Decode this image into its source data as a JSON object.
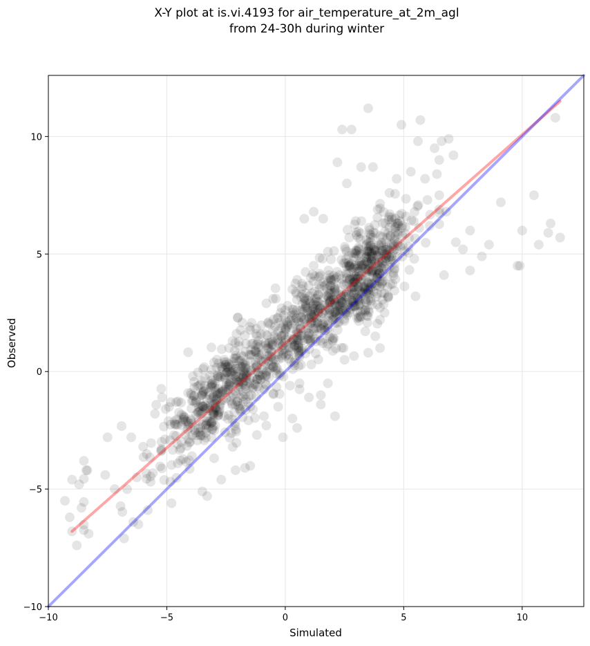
{
  "chart_data": {
    "type": "scatter",
    "title": "X-Y plot at is.vi.4193 for air_temperature_at_2m_agl",
    "subtitle": "from 24-30h during winter",
    "xlabel": "Simulated",
    "ylabel": "Observed",
    "xlim": [
      -10,
      12.6
    ],
    "ylim": [
      -10,
      12.6
    ],
    "x_ticks": [
      -10,
      -5,
      0,
      5,
      10
    ],
    "y_ticks": [
      -10,
      -5,
      0,
      5,
      10
    ],
    "x_tick_labels": [
      "−10",
      "−5",
      "0",
      "5",
      "10"
    ],
    "y_tick_labels": [
      "−10",
      "−5",
      "0",
      "5",
      "10"
    ],
    "grid": true,
    "legend": "none",
    "point_color": "#000000",
    "point_opacity": 0.1,
    "lines": [
      {
        "kind": "fit",
        "color": "#ff0000",
        "opacity": 0.35,
        "points": [
          [
            -9.0,
            -6.8
          ],
          [
            11.6,
            11.5
          ]
        ]
      },
      {
        "kind": "identity",
        "color": "#0000ff",
        "opacity": 0.35,
        "points": [
          [
            -10,
            -10
          ],
          [
            12.6,
            12.6
          ]
        ]
      }
    ],
    "outlier_points": [
      [
        -9.3,
        -5.5
      ],
      [
        -9.1,
        -6.2
      ],
      [
        -9.0,
        -6.8
      ],
      [
        -8.8,
        -7.4
      ],
      [
        -9.0,
        -4.6
      ],
      [
        -8.7,
        -4.8
      ],
      [
        -8.5,
        -3.8
      ],
      [
        -8.4,
        -4.2
      ],
      [
        -8.6,
        -5.8
      ],
      [
        -8.3,
        -6.9
      ],
      [
        -7.5,
        -2.8
      ],
      [
        -7.6,
        -4.4
      ],
      [
        -7.2,
        -5.0
      ],
      [
        -6.8,
        -7.1
      ],
      [
        -6.2,
        -6.5
      ],
      [
        -5.8,
        -5.9
      ],
      [
        -4.8,
        -5.6
      ],
      [
        -3.5,
        -5.1
      ],
      [
        -3.3,
        -5.3
      ],
      [
        -2.7,
        -4.6
      ],
      [
        -2.1,
        -4.2
      ],
      [
        -1.7,
        -4.1
      ],
      [
        -6.5,
        -2.8
      ],
      [
        -6.0,
        -3.2
      ],
      [
        -5.5,
        -1.8
      ],
      [
        -5.2,
        -1.1
      ],
      [
        -4.6,
        -1.3
      ],
      [
        2.4,
        10.3
      ],
      [
        2.8,
        10.3
      ],
      [
        3.5,
        11.2
      ],
      [
        4.9,
        10.5
      ],
      [
        5.7,
        10.7
      ],
      [
        3.2,
        8.7
      ],
      [
        3.7,
        8.7
      ],
      [
        5.6,
        9.8
      ],
      [
        6.3,
        9.5
      ],
      [
        6.6,
        9.8
      ],
      [
        6.9,
        9.9
      ],
      [
        6.5,
        9.0
      ],
      [
        7.1,
        9.2
      ],
      [
        2.2,
        8.9
      ],
      [
        2.6,
        8.0
      ],
      [
        1.6,
        6.5
      ],
      [
        0.8,
        6.5
      ],
      [
        1.2,
        6.8
      ],
      [
        11.4,
        10.8
      ],
      [
        10.5,
        7.5
      ],
      [
        9.1,
        7.2
      ],
      [
        10.0,
        6.0
      ],
      [
        11.2,
        6.3
      ],
      [
        11.6,
        5.7
      ],
      [
        11.1,
        5.9
      ],
      [
        10.7,
        5.4
      ],
      [
        9.9,
        4.5
      ],
      [
        9.8,
        4.5
      ],
      [
        8.6,
        5.4
      ],
      [
        8.3,
        4.9
      ],
      [
        7.8,
        4.3
      ],
      [
        7.5,
        5.2
      ],
      [
        7.2,
        5.5
      ],
      [
        6.7,
        4.1
      ],
      [
        5.5,
        3.2
      ],
      [
        5.2,
        5.3
      ],
      [
        6.1,
        6.2
      ],
      [
        6.8,
        6.8
      ],
      [
        7.8,
        6.0
      ],
      [
        4.0,
        2.2
      ],
      [
        3.8,
        1.5
      ],
      [
        4.0,
        1.0
      ],
      [
        3.5,
        0.8
      ],
      [
        2.5,
        0.5
      ],
      [
        1.8,
        -0.5
      ],
      [
        1.5,
        -1.0
      ],
      [
        2.1,
        -1.9
      ],
      [
        1.5,
        -1.4
      ],
      [
        1.0,
        -1.1
      ],
      [
        0.6,
        -0.5
      ],
      [
        -0.3,
        -1.5
      ],
      [
        -0.8,
        -2.3
      ],
      [
        -0.1,
        -2.8
      ],
      [
        0.5,
        -2.4
      ],
      [
        -1.2,
        -2.7
      ],
      [
        -0.9,
        -1.9
      ],
      [
        0.3,
        -2.0
      ],
      [
        -0.5,
        1.1
      ],
      [
        0.1,
        2.8
      ],
      [
        0.3,
        3.5
      ],
      [
        0.5,
        3.9
      ],
      [
        -0.7,
        2.1
      ],
      [
        -0.2,
        2.5
      ],
      [
        -3.9,
        -0.2
      ],
      [
        -3.5,
        -1.0
      ],
      [
        -4.1,
        -2.3
      ],
      [
        -3.0,
        -2.5
      ],
      [
        -2.2,
        -1.0
      ],
      [
        -1.8,
        0.2
      ],
      [
        -1.2,
        1.5
      ],
      [
        -1.5,
        1.9
      ],
      [
        -2.0,
        2.3
      ],
      [
        -0.8,
        2.9
      ],
      [
        -0.4,
        3.1
      ],
      [
        1.2,
        4.5
      ],
      [
        1.8,
        5.1
      ],
      [
        2.7,
        5.7
      ],
      [
        3.9,
        6.9
      ],
      [
        4.4,
        7.6
      ],
      [
        4.7,
        8.2
      ],
      [
        5.3,
        8.5
      ],
      [
        5.9,
        8.2
      ],
      [
        6.4,
        8.4
      ],
      [
        6.0,
        7.3
      ],
      [
        5.1,
        6.6
      ],
      [
        4.3,
        5.7
      ],
      [
        3.6,
        4.9
      ],
      [
        2.9,
        3.6
      ],
      [
        2.0,
        1.3
      ],
      [
        1.1,
        0.3
      ],
      [
        0.2,
        -0.6
      ]
    ]
  }
}
